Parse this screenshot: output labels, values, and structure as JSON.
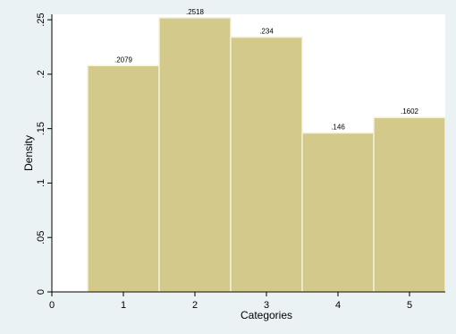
{
  "chart_data": {
    "type": "bar",
    "title": "",
    "xlabel": "Categories",
    "ylabel": "Density",
    "categories": [
      "1",
      "2",
      "3",
      "4",
      "5"
    ],
    "x_positions": [
      1,
      2,
      3,
      4,
      5
    ],
    "values": [
      0.2079,
      0.2518,
      0.234,
      0.146,
      0.1602
    ],
    "data_labels": [
      ".2079",
      ".2518",
      ".234",
      ".146",
      ".1602"
    ],
    "xlim": [
      0,
      5.5
    ],
    "ylim": [
      0,
      0.255
    ],
    "x_ticks": [
      0,
      1,
      2,
      3,
      4,
      5
    ],
    "x_tick_labels": [
      "0",
      "1",
      "2",
      "3",
      "4",
      "5"
    ],
    "y_ticks": [
      0,
      0.05,
      0.1,
      0.15,
      0.2,
      0.25
    ],
    "y_tick_labels": [
      "0",
      ".05",
      ".1",
      ".15",
      ".2",
      ".25"
    ],
    "grid": false,
    "legend": "none",
    "colors": {
      "bar_fill": "#d2c98a",
      "bar_edge": "#f3f0dc",
      "plot_bg": "#ffffff",
      "outer_bg": "#eaf2f3",
      "axis": "#000000"
    }
  }
}
